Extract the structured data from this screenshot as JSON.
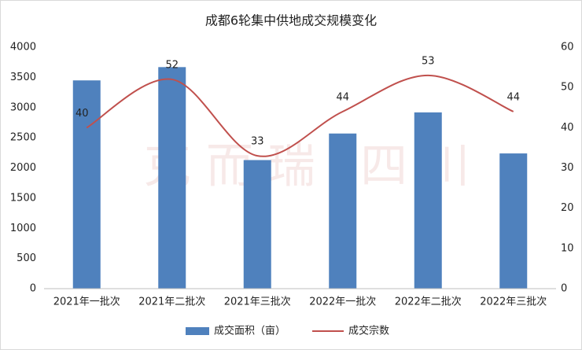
{
  "chart_data": {
    "type": "combo",
    "title": "成都6轮集中供地成交规模变化",
    "watermark": "克 而 瑞 · 四 川",
    "categories": [
      "2021年一批次",
      "2021年二批次",
      "2021年三批次",
      "2022年一批次",
      "2022年二批次",
      "2022年三批次"
    ],
    "series": [
      {
        "name": "成交面积（亩）",
        "color": "#4f81bd",
        "values": [
          3450,
          3670,
          2130,
          2570,
          2920,
          2240
        ]
      },
      {
        "name": "成交宗数",
        "color": "#c0504d",
        "axis": "y2",
        "values": [
          40,
          52,
          33,
          44,
          53,
          44
        ]
      }
    ],
    "ylim": [
      0,
      4000
    ],
    "yticks": [
      0,
      500,
      1000,
      1500,
      2000,
      2500,
      3000,
      3500,
      4000
    ],
    "y2lim": [
      0,
      60
    ],
    "y2ticks": [
      0,
      10,
      20,
      30,
      40,
      50,
      60
    ],
    "legend": "bottom"
  }
}
